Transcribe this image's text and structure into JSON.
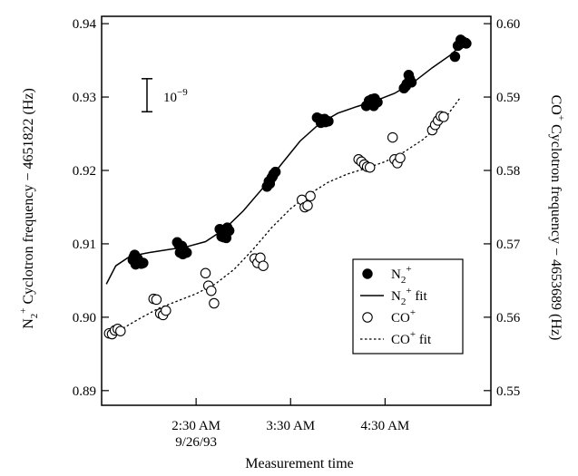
{
  "chart_data": {
    "type": "scatter",
    "title": "",
    "xlabel": "Measurement time",
    "ylabel_left": "N2+ Cyclotron frequency − 4651822 (Hz)",
    "ylabel_right": "CO+ Cyclotron frequency − 4653689 (Hz)",
    "xlim": [
      0.0,
      4.12
    ],
    "x_unit": "hours since 01:30 AM",
    "ylim_left": [
      0.888,
      0.941
    ],
    "ylim_right": [
      0.548,
      0.601
    ],
    "x_ticks": [
      {
        "x": 1.0,
        "label": "2:30 AM",
        "sublabel": "9/26/93"
      },
      {
        "x": 2.0,
        "label": "3:30 AM",
        "sublabel": ""
      },
      {
        "x": 3.0,
        "label": "4:30 AM",
        "sublabel": ""
      }
    ],
    "y_ticks_left": [
      {
        "v": 0.89,
        "label": "0.89"
      },
      {
        "v": 0.9,
        "label": "0.90"
      },
      {
        "v": 0.91,
        "label": "0.91"
      },
      {
        "v": 0.92,
        "label": "0.92"
      },
      {
        "v": 0.93,
        "label": "0.93"
      },
      {
        "v": 0.94,
        "label": "0.94"
      }
    ],
    "y_ticks_right": [
      {
        "v": 0.55,
        "label": "0.55"
      },
      {
        "v": 0.56,
        "label": "0.56"
      },
      {
        "v": 0.57,
        "label": "0.57"
      },
      {
        "v": 0.58,
        "label": "0.58"
      },
      {
        "v": 0.59,
        "label": "0.59"
      },
      {
        "v": 0.6,
        "label": "0.60"
      }
    ],
    "scale_bar": {
      "label": "10",
      "exponent": "−9",
      "v1": 0.9325,
      "v2": 0.928
    },
    "legend": {
      "position": "lower-right",
      "entries": [
        {
          "label": "N",
          "sub": "2",
          "sup": "+",
          "suffix": "",
          "kind": "filled"
        },
        {
          "label": "N",
          "sub": "2",
          "sup": "+",
          "suffix": " fit",
          "kind": "solid"
        },
        {
          "label": "CO",
          "sub": "",
          "sup": "+",
          "suffix": "",
          "kind": "open"
        },
        {
          "label": "CO",
          "sub": "",
          "sup": "+",
          "suffix": " fit",
          "kind": "dashed"
        }
      ]
    },
    "series": [
      {
        "name": "N2+",
        "axis": "left",
        "marker": "filled-circle",
        "points": [
          [
            0.35,
            0.9085
          ],
          [
            0.33,
            0.9078
          ],
          [
            0.37,
            0.9075
          ],
          [
            0.36,
            0.9072
          ],
          [
            0.4,
            0.9076
          ],
          [
            0.42,
            0.9073
          ],
          [
            0.44,
            0.9074
          ],
          [
            0.38,
            0.908
          ],
          [
            0.34,
            0.9082
          ],
          [
            0.8,
            0.9102
          ],
          [
            0.82,
            0.9098
          ],
          [
            0.85,
            0.9097
          ],
          [
            0.83,
            0.9088
          ],
          [
            0.88,
            0.909
          ],
          [
            0.86,
            0.9086
          ],
          [
            0.9,
            0.9088
          ],
          [
            1.25,
            0.912
          ],
          [
            1.27,
            0.911
          ],
          [
            1.3,
            0.9112
          ],
          [
            1.33,
            0.9122
          ],
          [
            1.35,
            0.9118
          ],
          [
            1.32,
            0.9108
          ],
          [
            1.29,
            0.9109
          ],
          [
            1.75,
            0.9178
          ],
          [
            1.77,
            0.9185
          ],
          [
            1.8,
            0.919
          ],
          [
            1.82,
            0.9195
          ],
          [
            1.84,
            0.9198
          ],
          [
            1.78,
            0.9182
          ],
          [
            1.81,
            0.9192
          ],
          [
            2.28,
            0.9272
          ],
          [
            2.31,
            0.927
          ],
          [
            2.34,
            0.9268
          ],
          [
            2.37,
            0.9266
          ],
          [
            2.4,
            0.9267
          ],
          [
            2.32,
            0.9265
          ],
          [
            2.36,
            0.927
          ],
          [
            2.8,
            0.9288
          ],
          [
            2.83,
            0.9295
          ],
          [
            2.86,
            0.9297
          ],
          [
            2.89,
            0.9298
          ],
          [
            2.92,
            0.9293
          ],
          [
            2.84,
            0.929
          ],
          [
            2.88,
            0.9288
          ],
          [
            3.2,
            0.9312
          ],
          [
            3.23,
            0.9318
          ],
          [
            3.26,
            0.9325
          ],
          [
            3.28,
            0.932
          ],
          [
            3.25,
            0.933
          ],
          [
            3.22,
            0.9315
          ],
          [
            3.74,
            0.9355
          ],
          [
            3.77,
            0.937
          ],
          [
            3.8,
            0.9378
          ],
          [
            3.83,
            0.9375
          ],
          [
            3.86,
            0.9373
          ],
          [
            3.79,
            0.9372
          ]
        ]
      },
      {
        "name": "CO+",
        "axis": "right",
        "marker": "open-circle",
        "points": [
          [
            0.08,
            0.5578
          ],
          [
            0.11,
            0.5577
          ],
          [
            0.14,
            0.5582
          ],
          [
            0.17,
            0.5584
          ],
          [
            0.2,
            0.5581
          ],
          [
            0.55,
            0.5625
          ],
          [
            0.58,
            0.5624
          ],
          [
            0.62,
            0.5605
          ],
          [
            0.65,
            0.5603
          ],
          [
            0.68,
            0.5609
          ],
          [
            1.1,
            0.566
          ],
          [
            1.13,
            0.5643
          ],
          [
            1.16,
            0.5636
          ],
          [
            1.19,
            0.5619
          ],
          [
            1.62,
            0.568
          ],
          [
            1.65,
            0.5674
          ],
          [
            1.68,
            0.5681
          ],
          [
            1.71,
            0.567
          ],
          [
            2.12,
            0.576
          ],
          [
            2.15,
            0.575
          ],
          [
            2.18,
            0.5752
          ],
          [
            2.21,
            0.5765
          ],
          [
            2.72,
            0.5815
          ],
          [
            2.75,
            0.5812
          ],
          [
            2.78,
            0.5808
          ],
          [
            2.81,
            0.5805
          ],
          [
            2.84,
            0.5804
          ],
          [
            3.08,
            0.5845
          ],
          [
            3.1,
            0.5815
          ],
          [
            3.13,
            0.581
          ],
          [
            3.16,
            0.5817
          ],
          [
            3.5,
            0.5855
          ],
          [
            3.53,
            0.5862
          ],
          [
            3.56,
            0.5868
          ],
          [
            3.59,
            0.5874
          ],
          [
            3.62,
            0.5873
          ]
        ]
      }
    ],
    "fits": [
      {
        "name": "N2+ fit",
        "axis": "left",
        "style": "solid",
        "points": [
          [
            0.05,
            0.9045
          ],
          [
            0.15,
            0.907
          ],
          [
            0.3,
            0.9083
          ],
          [
            0.5,
            0.9088
          ],
          [
            0.7,
            0.9092
          ],
          [
            0.9,
            0.9096
          ],
          [
            1.1,
            0.9103
          ],
          [
            1.3,
            0.912
          ],
          [
            1.5,
            0.9145
          ],
          [
            1.7,
            0.9175
          ],
          [
            1.9,
            0.9208
          ],
          [
            2.1,
            0.924
          ],
          [
            2.3,
            0.9263
          ],
          [
            2.5,
            0.9278
          ],
          [
            2.7,
            0.9287
          ],
          [
            2.9,
            0.9295
          ],
          [
            3.1,
            0.9305
          ],
          [
            3.3,
            0.932
          ],
          [
            3.5,
            0.934
          ],
          [
            3.7,
            0.9358
          ],
          [
            3.88,
            0.938
          ]
        ]
      },
      {
        "name": "CO+ fit",
        "axis": "right",
        "style": "dashed",
        "points": [
          [
            0.05,
            0.5575
          ],
          [
            0.2,
            0.5583
          ],
          [
            0.4,
            0.5598
          ],
          [
            0.6,
            0.5612
          ],
          [
            0.8,
            0.5622
          ],
          [
            1.0,
            0.5632
          ],
          [
            1.2,
            0.5645
          ],
          [
            1.4,
            0.5665
          ],
          [
            1.6,
            0.5692
          ],
          [
            1.8,
            0.5722
          ],
          [
            2.0,
            0.5748
          ],
          [
            2.2,
            0.5768
          ],
          [
            2.4,
            0.5784
          ],
          [
            2.6,
            0.5795
          ],
          [
            2.8,
            0.5803
          ],
          [
            3.0,
            0.5812
          ],
          [
            3.2,
            0.5825
          ],
          [
            3.4,
            0.5842
          ],
          [
            3.6,
            0.5865
          ],
          [
            3.8,
            0.59
          ]
        ]
      }
    ]
  }
}
